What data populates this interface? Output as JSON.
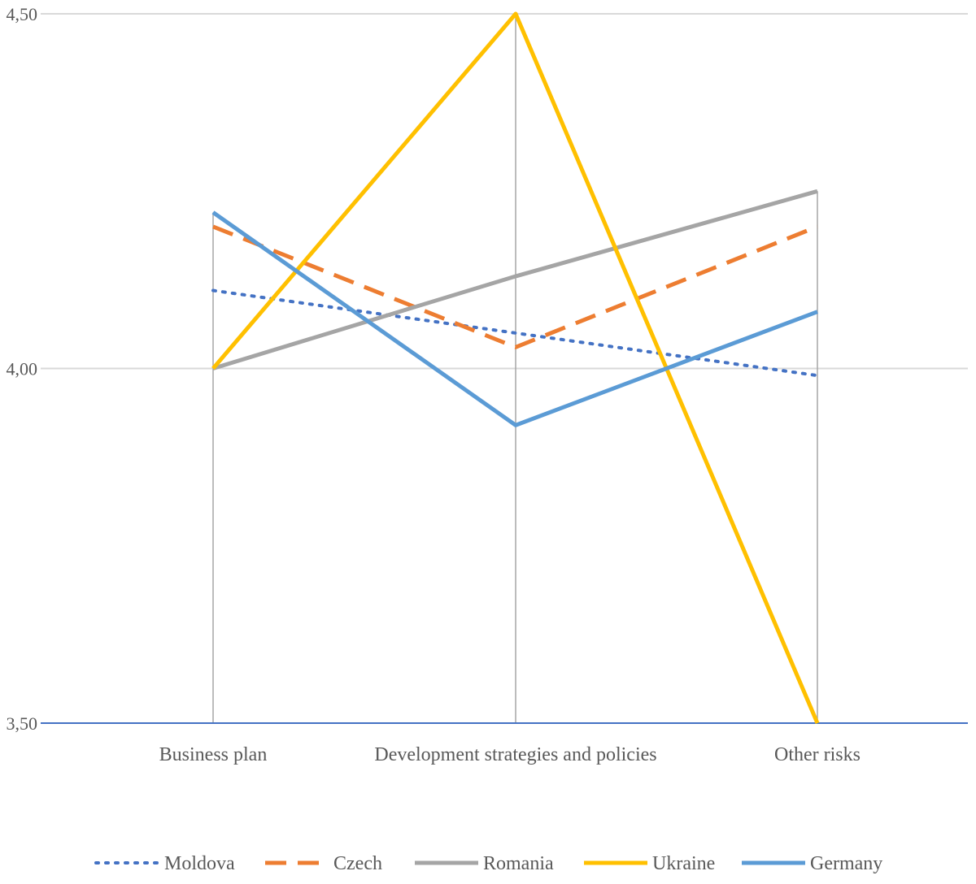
{
  "chart_data": {
    "type": "line",
    "title": "",
    "xlabel": "",
    "ylabel": "",
    "categories": [
      "Business plan",
      "Development strategies and policies",
      "Other risks"
    ],
    "ylim": [
      3.5,
      4.5
    ],
    "yticks": [
      "3,50",
      "4,00",
      "4,50"
    ],
    "ytick_values": [
      3.5,
      4.0,
      4.5
    ],
    "grid": true,
    "drop_lines": true,
    "legend_position": "bottom",
    "series": [
      {
        "name": "Moldova",
        "values": [
          4.11,
          4.05,
          3.99
        ],
        "color": "#4472C4",
        "style": "dotted"
      },
      {
        "name": "Czech",
        "values": [
          4.2,
          4.03,
          4.2
        ],
        "color": "#ED7D31",
        "style": "dashed"
      },
      {
        "name": "Romania",
        "values": [
          4.0,
          4.13,
          4.25
        ],
        "color": "#A5A5A5",
        "style": "solid"
      },
      {
        "name": "Ukraine",
        "values": [
          4.0,
          4.5,
          3.5
        ],
        "color": "#FFC000",
        "style": "solid"
      },
      {
        "name": "Germany",
        "values": [
          4.22,
          3.92,
          4.08
        ],
        "color": "#5B9BD5",
        "style": "solid"
      }
    ]
  }
}
